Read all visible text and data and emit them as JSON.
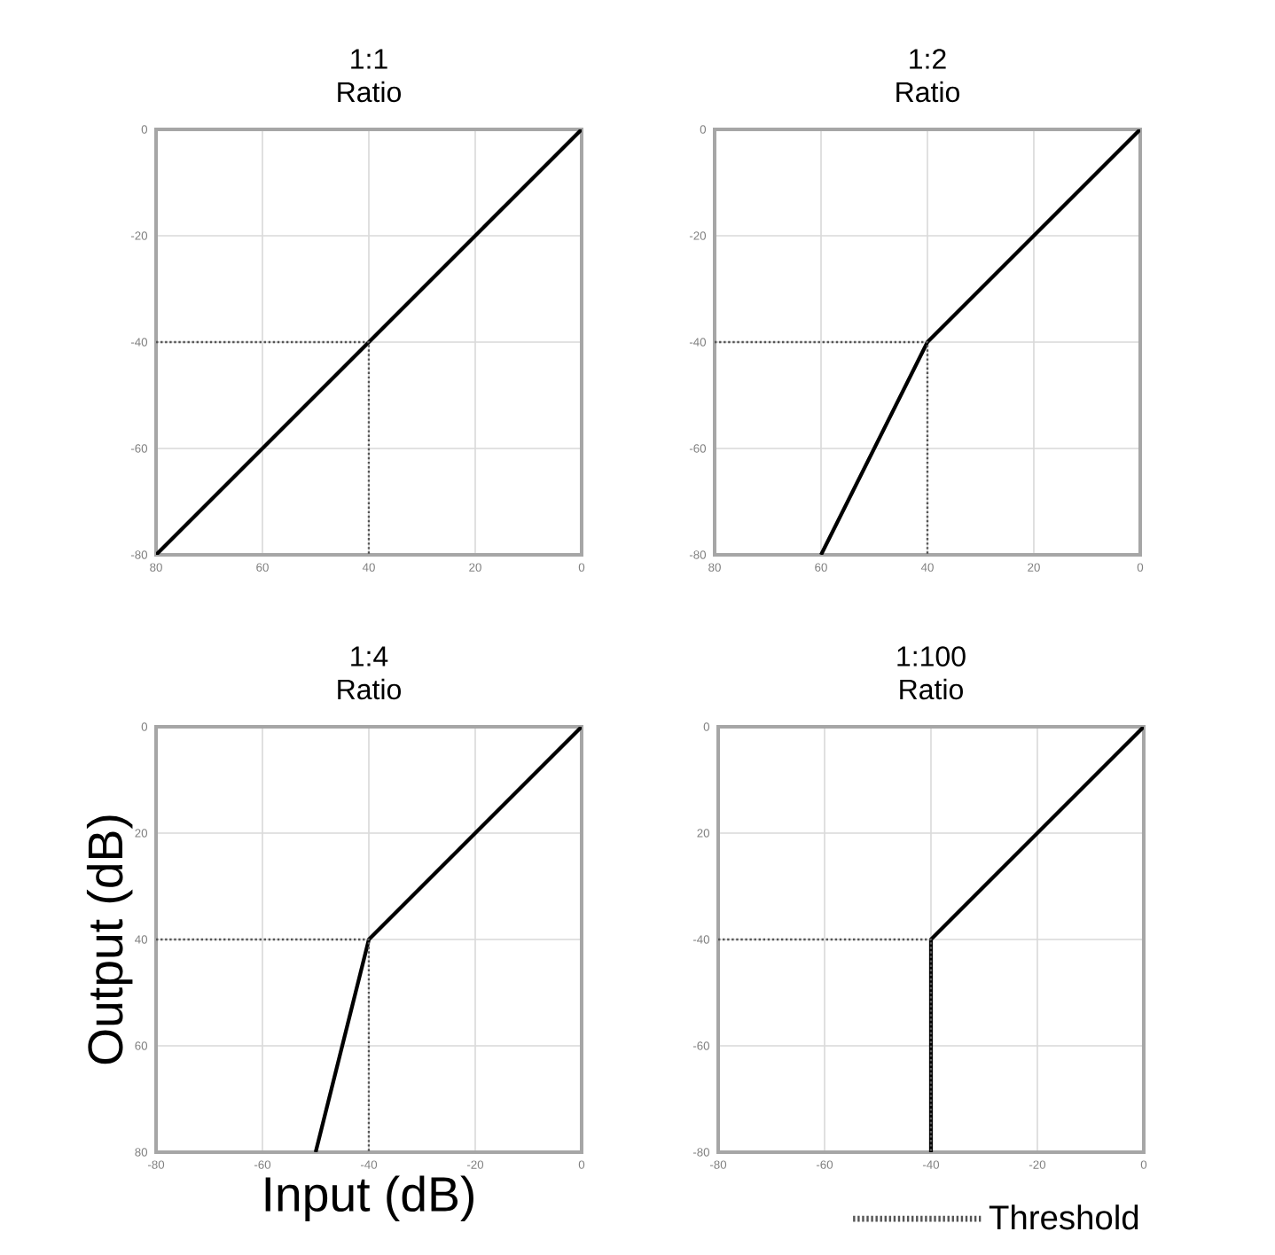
{
  "chart_data": [
    {
      "type": "line",
      "title": "1:1",
      "subtitle": "Ratio",
      "xlim": [
        -80,
        0
      ],
      "ylim": [
        -80,
        0
      ],
      "xticks": [
        {
          "value": -80,
          "label": "80"
        },
        {
          "value": -60,
          "label": "60"
        },
        {
          "value": -40,
          "label": "40"
        },
        {
          "value": -20,
          "label": "20"
        },
        0
      ],
      "yticks": [
        -80,
        -60,
        -40,
        -20,
        0
      ],
      "grid": true,
      "marker": "none",
      "series": [
        {
          "color": "#000000",
          "line_style": "solid",
          "x": [
            -80,
            0
          ],
          "values": [
            -80,
            0
          ]
        },
        {
          "color": "#555555",
          "line_style": "dotted",
          "x": [
            -80,
            -40,
            -40
          ],
          "values": [
            -40,
            -40,
            -80
          ]
        }
      ]
    },
    {
      "type": "line",
      "title": "1:2",
      "subtitle": "Ratio",
      "xlim": [
        -80,
        0
      ],
      "ylim": [
        -80,
        0
      ],
      "xticks": [
        {
          "value": -80,
          "label": "80"
        },
        {
          "value": -60,
          "label": "60"
        },
        {
          "value": -40,
          "label": "40"
        },
        {
          "value": -20,
          "label": "20"
        },
        0
      ],
      "yticks": [
        -80,
        -60,
        -40,
        -20,
        0
      ],
      "grid": true,
      "marker": "none",
      "series": [
        {
          "color": "#000000",
          "line_style": "solid",
          "x": [
            -60,
            -40,
            0
          ],
          "values": [
            -80,
            -40,
            0
          ]
        },
        {
          "color": "#555555",
          "line_style": "dotted",
          "x": [
            -80,
            -40,
            -40
          ],
          "values": [
            -40,
            -40,
            -80
          ]
        }
      ]
    },
    {
      "type": "line",
      "title": "1:4",
      "subtitle": "Ratio",
      "xlabel": "Input (dB)",
      "ylabel": "Output (dB)",
      "xlim": [
        -80,
        0
      ],
      "ylim": [
        -80,
        0
      ],
      "xticks": [
        -80,
        -60,
        -40,
        -20,
        0
      ],
      "yticks": [
        {
          "value": -80,
          "label": "80"
        },
        {
          "value": -60,
          "label": "60"
        },
        {
          "value": -40,
          "label": "40"
        },
        {
          "value": -20,
          "label": "20"
        },
        0
      ],
      "grid": true,
      "marker": "none",
      "series": [
        {
          "color": "#000000",
          "line_style": "solid",
          "x": [
            -50,
            -40,
            0
          ],
          "values": [
            -80,
            -40,
            0
          ]
        },
        {
          "color": "#555555",
          "line_style": "dotted",
          "x": [
            -80,
            -40,
            -40
          ],
          "values": [
            -40,
            -40,
            -80
          ]
        }
      ]
    },
    {
      "type": "line",
      "title": "1:100",
      "subtitle": "Ratio",
      "xlim": [
        -80,
        0
      ],
      "ylim": [
        -80,
        0
      ],
      "xticks": [
        -80,
        -60,
        -40,
        -20,
        0
      ],
      "yticks": [
        -80,
        -60,
        -40,
        {
          "value": -20,
          "label": "20"
        },
        0
      ],
      "grid": true,
      "marker": "none",
      "legend": "bottom",
      "series": [
        {
          "color": "#000000",
          "line_style": "solid",
          "x": [
            -40,
            -40,
            0
          ],
          "values": [
            -80,
            -40,
            0
          ]
        },
        {
          "name": "Threshold",
          "color": "#555555",
          "line_style": "dotted",
          "x": [
            -80,
            -40,
            -40
          ],
          "values": [
            -40,
            -40,
            -80
          ]
        }
      ]
    }
  ]
}
